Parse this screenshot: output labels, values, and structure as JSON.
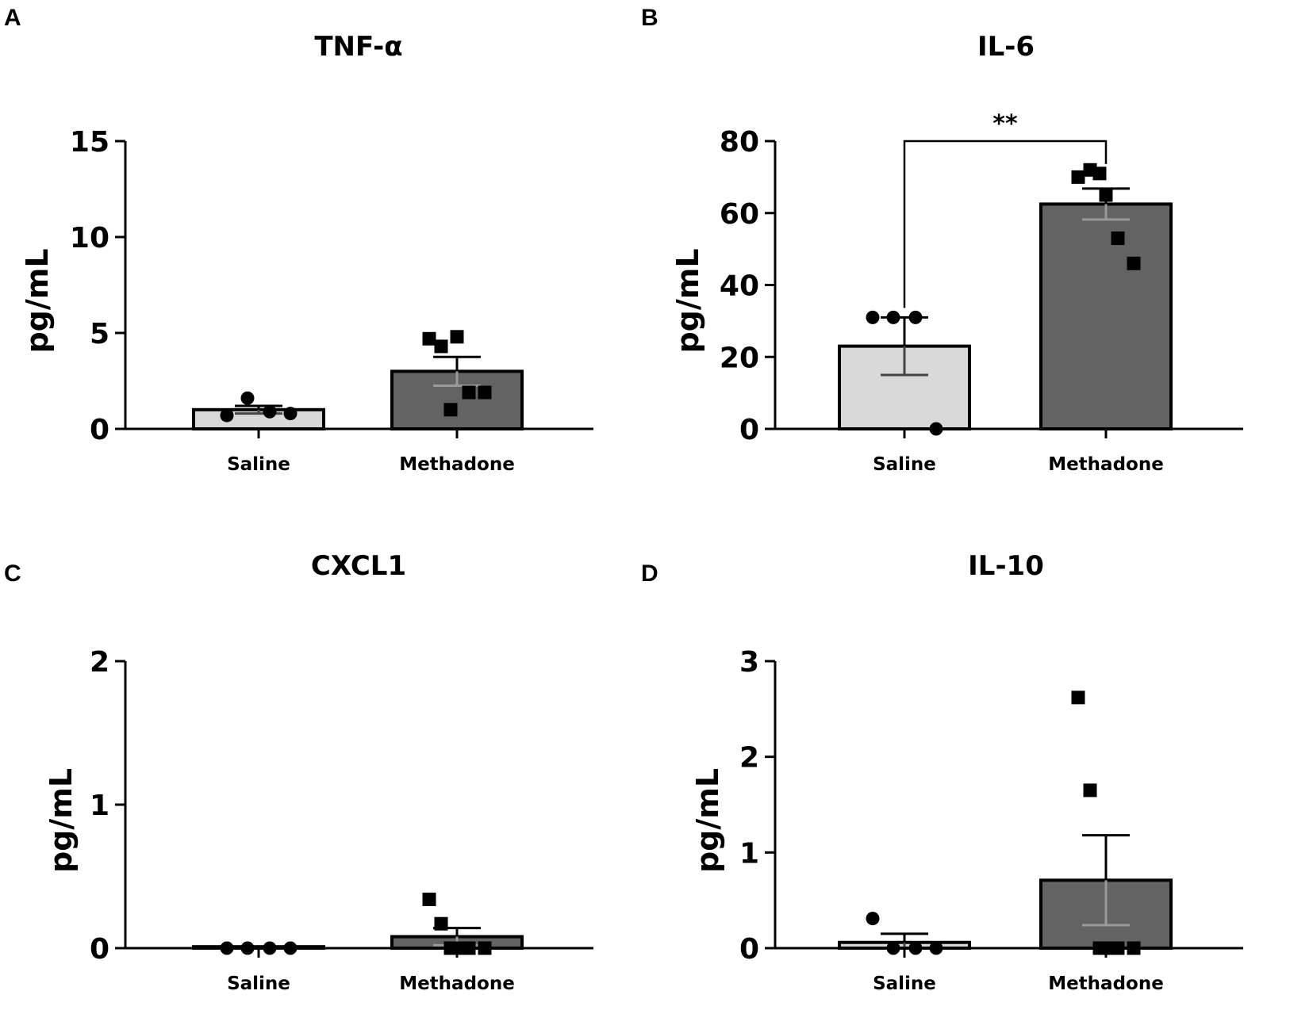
{
  "colors": {
    "saline_bar": "#d9d9d9",
    "methadone_bar": "#636363",
    "stroke": "#000000",
    "error_on_light": "#444444",
    "error_on_dark": "#9a9a9a",
    "points": "#000000"
  },
  "chart_data": [
    {
      "panel": "A",
      "type": "bar",
      "title": "TNF-α",
      "ylabel": "pg/mL",
      "xlabel": "",
      "ylim": [
        0,
        15
      ],
      "yticks": [
        0,
        5,
        10,
        15
      ],
      "ytick_labels": [
        "0",
        "5",
        "10",
        "15"
      ],
      "categories": [
        "Saline",
        "Methadone"
      ],
      "values": [
        1.0,
        3.0
      ],
      "sem": [
        0.2,
        0.75
      ],
      "points": [
        [
          0.7,
          1.6,
          0.9,
          0.8
        ],
        [
          4.7,
          4.3,
          4.8,
          1.9,
          1.9,
          1.0
        ]
      ],
      "markers": [
        "circle",
        "square"
      ],
      "significance": null
    },
    {
      "panel": "B",
      "type": "bar",
      "title": "IL-6",
      "ylabel": "pg/mL",
      "xlabel": "",
      "ylim": [
        0,
        80
      ],
      "yticks": [
        0,
        20,
        40,
        60,
        80
      ],
      "ytick_labels": [
        "0",
        "20",
        "40",
        "60",
        "80"
      ],
      "categories": [
        "Saline",
        "Methadone"
      ],
      "values": [
        23,
        62.5
      ],
      "sem": [
        8,
        4.3
      ],
      "points": [
        [
          31,
          31,
          31,
          0
        ],
        [
          70,
          72,
          65,
          53,
          46,
          71
        ]
      ],
      "markers": [
        "circle",
        "square"
      ],
      "significance": {
        "label": "**",
        "between": [
          0,
          1
        ],
        "y": 80
      }
    },
    {
      "panel": "C",
      "type": "bar",
      "title": "CXCL1",
      "ylabel": "pg/mL",
      "xlabel": "",
      "ylim": [
        0,
        2
      ],
      "yticks": [
        0,
        1,
        2
      ],
      "ytick_labels": [
        "0",
        "1",
        "2"
      ],
      "categories": [
        "Saline",
        "Methadone"
      ],
      "values": [
        0.01,
        0.08
      ],
      "sem": [
        0,
        0.06
      ],
      "points": [
        [
          0,
          0,
          0,
          0
        ],
        [
          0.34,
          0.17,
          0,
          0,
          0,
          0
        ]
      ],
      "markers": [
        "circle",
        "square"
      ],
      "significance": null
    },
    {
      "panel": "D",
      "type": "bar",
      "title": "IL-10",
      "ylabel": "pg/mL",
      "xlabel": "",
      "ylim": [
        0,
        3
      ],
      "yticks": [
        0,
        1,
        2,
        3
      ],
      "ytick_labels": [
        "0",
        "1",
        "2",
        "3"
      ],
      "categories": [
        "Saline",
        "Methadone"
      ],
      "values": [
        0.06,
        0.71
      ],
      "sem": [
        0.09,
        0.47
      ],
      "points": [
        [
          0.31,
          0,
          0,
          0
        ],
        [
          2.62,
          1.65,
          0,
          0,
          0,
          0
        ]
      ],
      "markers": [
        "circle",
        "square"
      ],
      "significance": null
    }
  ]
}
